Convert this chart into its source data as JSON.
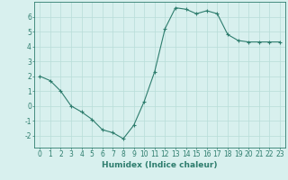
{
  "x": [
    0,
    1,
    2,
    3,
    4,
    5,
    6,
    7,
    8,
    9,
    10,
    11,
    12,
    13,
    14,
    15,
    16,
    17,
    18,
    19,
    20,
    21,
    22,
    23
  ],
  "y": [
    2.0,
    1.7,
    1.0,
    0.0,
    -0.4,
    -0.9,
    -1.6,
    -1.8,
    -2.2,
    -1.3,
    0.3,
    2.3,
    5.2,
    6.6,
    6.5,
    6.2,
    6.4,
    6.2,
    4.8,
    4.4,
    4.3,
    4.3,
    4.3,
    4.3
  ],
  "xlabel": "Humidex (Indice chaleur)",
  "ylim": [
    -2.8,
    7.0
  ],
  "xlim": [
    -0.5,
    23.5
  ],
  "yticks": [
    -2,
    -1,
    0,
    1,
    2,
    3,
    4,
    5,
    6
  ],
  "xticks": [
    0,
    1,
    2,
    3,
    4,
    5,
    6,
    7,
    8,
    9,
    10,
    11,
    12,
    13,
    14,
    15,
    16,
    17,
    18,
    19,
    20,
    21,
    22,
    23
  ],
  "line_color": "#2e7d6e",
  "marker": "+",
  "bg_color": "#d8f0ee",
  "grid_color": "#b8ddd8",
  "axis_color": "#2e7d6e",
  "label_color": "#2e7d6e",
  "tick_label_fontsize": 5.5,
  "xlabel_fontsize": 6.5
}
